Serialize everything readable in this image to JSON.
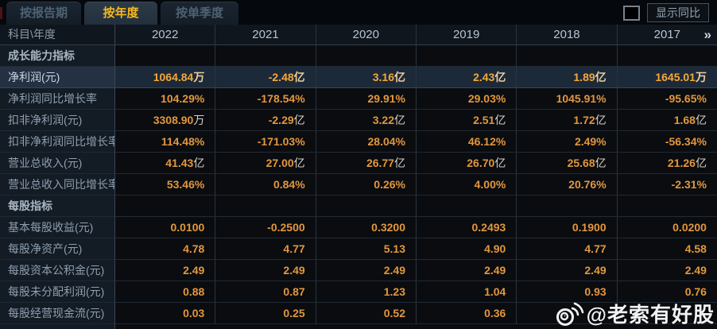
{
  "tabs": [
    {
      "label": "按报告期",
      "active": false
    },
    {
      "label": "按年度",
      "active": true
    },
    {
      "label": "按单季度",
      "active": false
    }
  ],
  "controls": {
    "compare_label": "显示同比",
    "compare_checked": false
  },
  "table": {
    "corner_label": "科目\\年度",
    "years": [
      "2022",
      "2021",
      "2020",
      "2019",
      "2018",
      "2017"
    ],
    "more_icon": "»",
    "rows": [
      {
        "type": "section",
        "label": "成长能力指标",
        "values": [
          "",
          "",
          "",
          "",
          "",
          ""
        ]
      },
      {
        "type": "data",
        "label": "净利润(元)",
        "highlight": true,
        "values": [
          "1064.84万",
          "-2.48亿",
          "3.16亿",
          "2.43亿",
          "1.89亿",
          "1645.01万"
        ]
      },
      {
        "type": "data",
        "label": "净利润同比增长率",
        "values": [
          "104.29%",
          "-178.54%",
          "29.91%",
          "29.03%",
          "1045.91%",
          "-95.65%"
        ]
      },
      {
        "type": "data",
        "label": "扣非净利润(元)",
        "values": [
          "3308.90万",
          "-2.29亿",
          "3.22亿",
          "2.51亿",
          "1.72亿",
          "1.68亿"
        ]
      },
      {
        "type": "data",
        "label": "扣非净利润同比增长率",
        "values": [
          "114.48%",
          "-171.03%",
          "28.04%",
          "46.12%",
          "2.49%",
          "-56.34%"
        ]
      },
      {
        "type": "data",
        "label": "营业总收入(元)",
        "values": [
          "41.43亿",
          "27.00亿",
          "26.77亿",
          "26.70亿",
          "25.68亿",
          "21.26亿"
        ]
      },
      {
        "type": "data",
        "label": "营业总收入同比增长率",
        "values": [
          "53.46%",
          "0.84%",
          "0.26%",
          "4.00%",
          "20.76%",
          "-2.31%"
        ]
      },
      {
        "type": "section",
        "label": "每股指标",
        "values": [
          "",
          "",
          "",
          "",
          "",
          ""
        ]
      },
      {
        "type": "data",
        "label": "基本每股收益(元)",
        "values": [
          "0.0100",
          "-0.2500",
          "0.3200",
          "0.2493",
          "0.1900",
          "0.0200"
        ]
      },
      {
        "type": "data",
        "label": "每股净资产(元)",
        "values": [
          "4.78",
          "4.77",
          "5.13",
          "4.90",
          "4.77",
          "4.58"
        ]
      },
      {
        "type": "data",
        "label": "每股资本公积金(元)",
        "values": [
          "2.49",
          "2.49",
          "2.49",
          "2.49",
          "2.49",
          "2.49"
        ]
      },
      {
        "type": "data",
        "label": "每股未分配利润(元)",
        "values": [
          "0.88",
          "0.87",
          "1.23",
          "1.04",
          "0.93",
          "0.76"
        ]
      },
      {
        "type": "data",
        "label": "每股经营现金流(元)",
        "values": [
          "0.03",
          "0.25",
          "0.52",
          "0.36",
          "",
          ""
        ]
      }
    ]
  },
  "watermark": {
    "icon": "weibo-icon",
    "text": "@老索有好股"
  },
  "colors": {
    "accent_tab": "#f6b91d",
    "value_orange": "#e2973d",
    "highlight_orange": "#f3a93a",
    "label_grey": "#8f9fae",
    "highlight_row_bg": "#1c2938",
    "watermark_white": "#ffffff"
  }
}
